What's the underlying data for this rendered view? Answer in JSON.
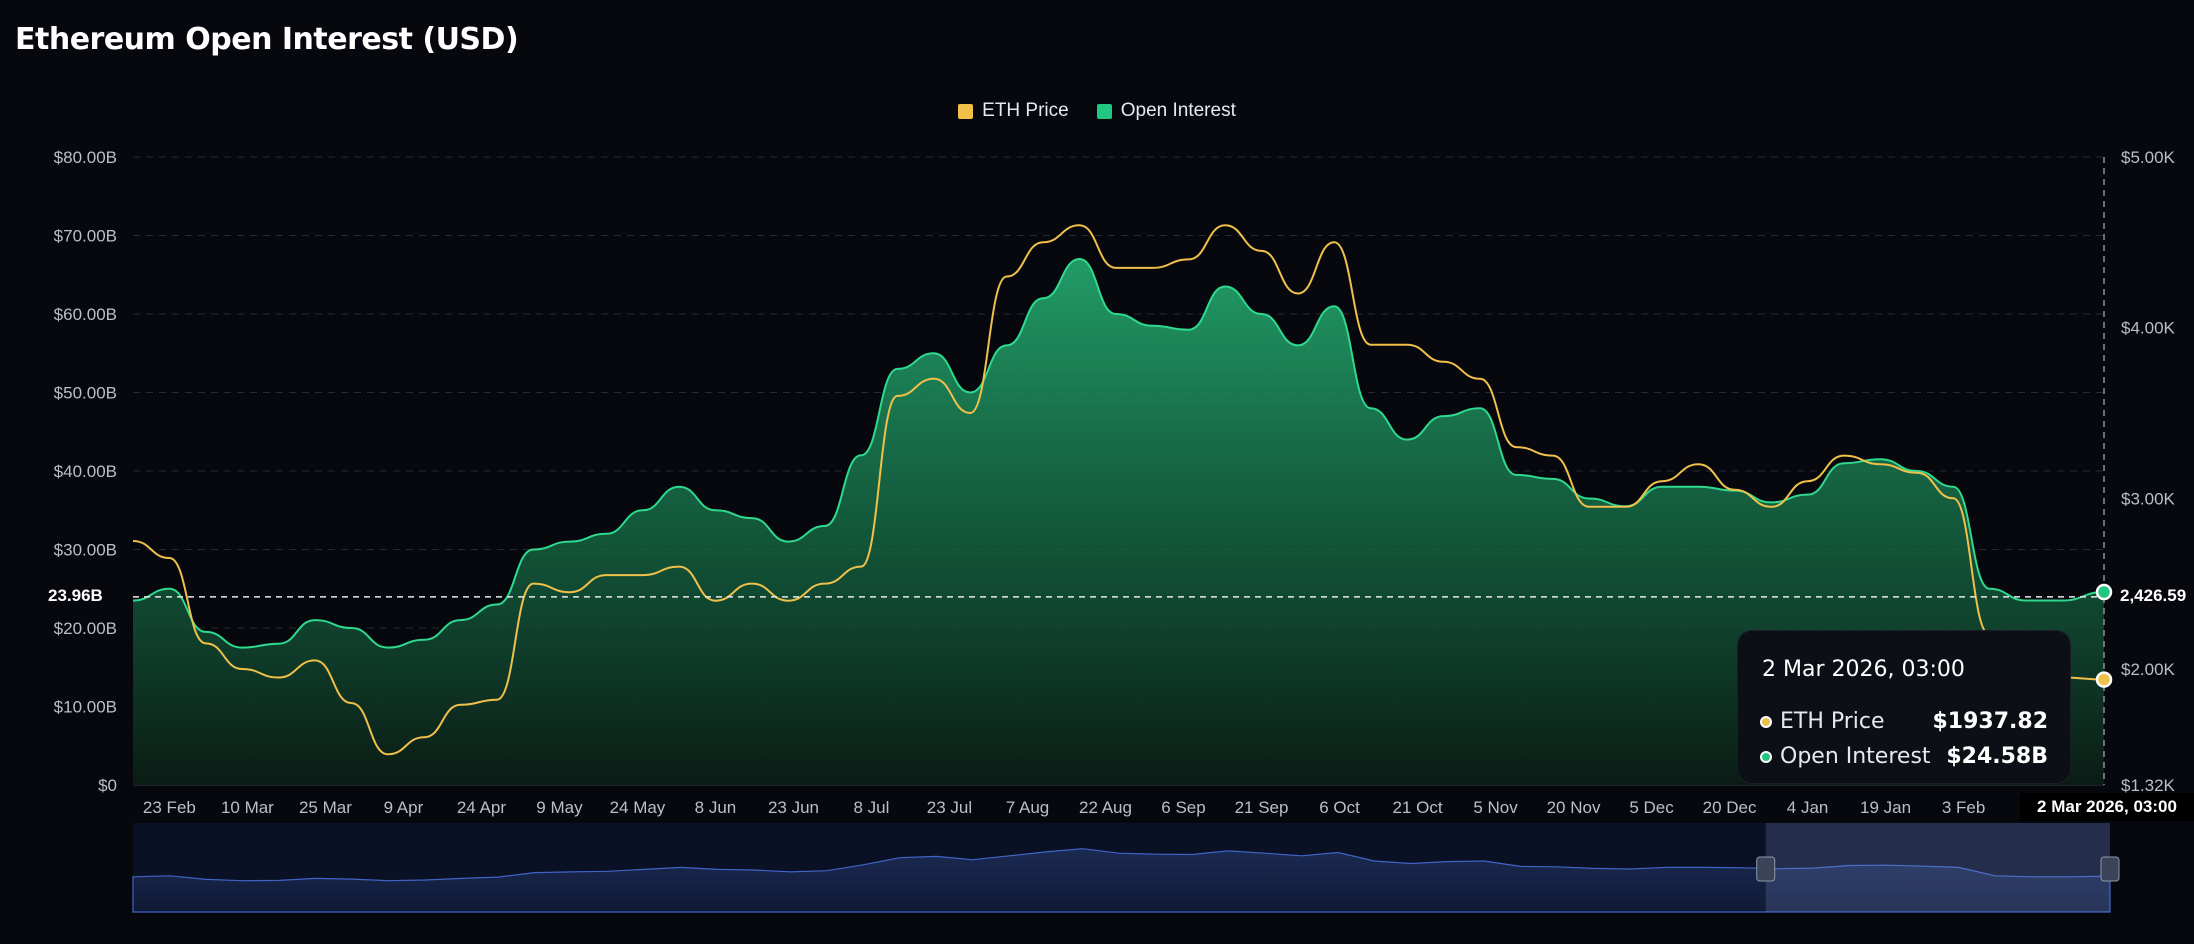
{
  "header": {
    "title": "Ethereum Open Interest (USD)"
  },
  "legend": {
    "items": [
      {
        "label": "ETH Price",
        "color": "#f0c04a"
      },
      {
        "label": "Open Interest",
        "color": "#1fc77f"
      }
    ]
  },
  "chart_data": {
    "type": "area",
    "title": "Ethereum Open Interest (USD)",
    "grid": true,
    "legend_position": "top-center",
    "x": [
      "2025-02-16",
      "2025-02-23",
      "2025-03-02",
      "2025-03-09",
      "2025-03-16",
      "2025-03-23",
      "2025-03-30",
      "2025-04-06",
      "2025-04-13",
      "2025-04-20",
      "2025-04-27",
      "2025-05-04",
      "2025-05-11",
      "2025-05-18",
      "2025-05-25",
      "2025-06-01",
      "2025-06-08",
      "2025-06-15",
      "2025-06-22",
      "2025-06-29",
      "2025-07-06",
      "2025-07-13",
      "2025-07-20",
      "2025-07-27",
      "2025-08-03",
      "2025-08-10",
      "2025-08-17",
      "2025-08-24",
      "2025-08-31",
      "2025-09-07",
      "2025-09-14",
      "2025-09-21",
      "2025-09-28",
      "2025-10-05",
      "2025-10-12",
      "2025-10-19",
      "2025-10-26",
      "2025-11-02",
      "2025-11-09",
      "2025-11-16",
      "2025-11-23",
      "2025-11-30",
      "2025-12-07",
      "2025-12-14",
      "2025-12-21",
      "2025-12-28",
      "2026-01-04",
      "2026-01-11",
      "2026-01-18",
      "2026-01-25",
      "2026-02-01",
      "2026-02-08",
      "2026-02-15",
      "2026-02-22",
      "2026-03-02"
    ],
    "series": [
      {
        "name": "Open Interest",
        "axis": "left",
        "unit": "USD",
        "values": [
          23.5,
          25.0,
          19.5,
          17.5,
          18.0,
          21.0,
          20.0,
          17.5,
          18.5,
          21.0,
          23.0,
          30.0,
          31.0,
          32.0,
          35.0,
          38.0,
          35.0,
          34.0,
          31.0,
          33.0,
          42.0,
          53.0,
          55.0,
          50.0,
          56.0,
          62.0,
          67.0,
          60.0,
          58.5,
          58.0,
          63.5,
          60.0,
          56.0,
          61.0,
          48.0,
          44.0,
          47.0,
          48.0,
          39.5,
          39.0,
          36.5,
          35.5,
          38.0,
          38.0,
          37.5,
          36.0,
          37.0,
          41.0,
          41.5,
          40.0,
          38.0,
          25.0,
          23.5,
          23.5,
          24.58
        ]
      },
      {
        "name": "ETH Price",
        "axis": "right",
        "unit": "USD",
        "values": [
          2750,
          2650,
          2150,
          2000,
          1950,
          2050,
          1800,
          1500,
          1600,
          1790,
          1820,
          2500,
          2450,
          2550,
          2550,
          2600,
          2400,
          2500,
          2400,
          2500,
          2600,
          3600,
          3700,
          3500,
          4300,
          4500,
          4600,
          4350,
          4350,
          4400,
          4600,
          4450,
          4200,
          4500,
          3900,
          3900,
          3800,
          3700,
          3300,
          3250,
          2950,
          2950,
          3100,
          3200,
          3050,
          2950,
          3100,
          3250,
          3200,
          3150,
          3000,
          2200,
          1950,
          1950,
          1937.82
        ]
      }
    ],
    "left_axis": {
      "min": 0,
      "max": 80,
      "unit": "B",
      "ticks": [
        "$0",
        "$10.00B",
        "$20.00B",
        "$30.00B",
        "$40.00B",
        "$50.00B",
        "$60.00B",
        "$70.00B",
        "$80.00B"
      ]
    },
    "right_axis": {
      "ticks": [
        {
          "value": 1320,
          "label": "$1.32K"
        },
        {
          "value": 2000,
          "label": "$2.00K"
        },
        {
          "value": 3000,
          "label": "$3.00K"
        },
        {
          "value": 4000,
          "label": "$4.00K"
        },
        {
          "value": 5000,
          "label": "$5.00K"
        }
      ]
    },
    "x_ticks": [
      {
        "date": "2025-02-23",
        "label": "23 Feb"
      },
      {
        "date": "2025-03-10",
        "label": "10 Mar"
      },
      {
        "date": "2025-03-25",
        "label": "25 Mar"
      },
      {
        "date": "2025-04-09",
        "label": "9 Apr"
      },
      {
        "date": "2025-04-24",
        "label": "24 Apr"
      },
      {
        "date": "2025-05-09",
        "label": "9 May"
      },
      {
        "date": "2025-05-24",
        "label": "24 May"
      },
      {
        "date": "2025-06-08",
        "label": "8 Jun"
      },
      {
        "date": "2025-06-23",
        "label": "23 Jun"
      },
      {
        "date": "2025-07-08",
        "label": "8 Jul"
      },
      {
        "date": "2025-07-23",
        "label": "23 Jul"
      },
      {
        "date": "2025-08-07",
        "label": "7 Aug"
      },
      {
        "date": "2025-08-22",
        "label": "22 Aug"
      },
      {
        "date": "2025-09-06",
        "label": "6 Sep"
      },
      {
        "date": "2025-09-21",
        "label": "21 Sep"
      },
      {
        "date": "2025-10-06",
        "label": "6 Oct"
      },
      {
        "date": "2025-10-21",
        "label": "21 Oct"
      },
      {
        "date": "2025-11-05",
        "label": "5 Nov"
      },
      {
        "date": "2025-11-20",
        "label": "20 Nov"
      },
      {
        "date": "2025-12-05",
        "label": "5 Dec"
      },
      {
        "date": "2025-12-20",
        "label": "20 Dec"
      },
      {
        "date": "2026-01-04",
        "label": "4 Jan"
      },
      {
        "date": "2026-01-19",
        "label": "19 Jan"
      },
      {
        "date": "2026-02-03",
        "label": "3 Feb"
      }
    ],
    "crosshair": {
      "left_label": "23.96B",
      "right_label": "2,426.59",
      "value_b": 23.96,
      "date": "2026-03-02"
    },
    "range_selector": {
      "start": "2025-12-26",
      "end": "2026-03-02"
    }
  },
  "tooltip": {
    "date": "2 Mar 2026, 03:00",
    "rows": [
      {
        "label": "ETH Price",
        "value": "$1937.82",
        "color": "#f0c04a"
      },
      {
        "label": "Open Interest",
        "value": "$24.58B",
        "color": "#1fc77f"
      }
    ]
  },
  "cursor_date_label": "2 Mar 2026, 03:00"
}
